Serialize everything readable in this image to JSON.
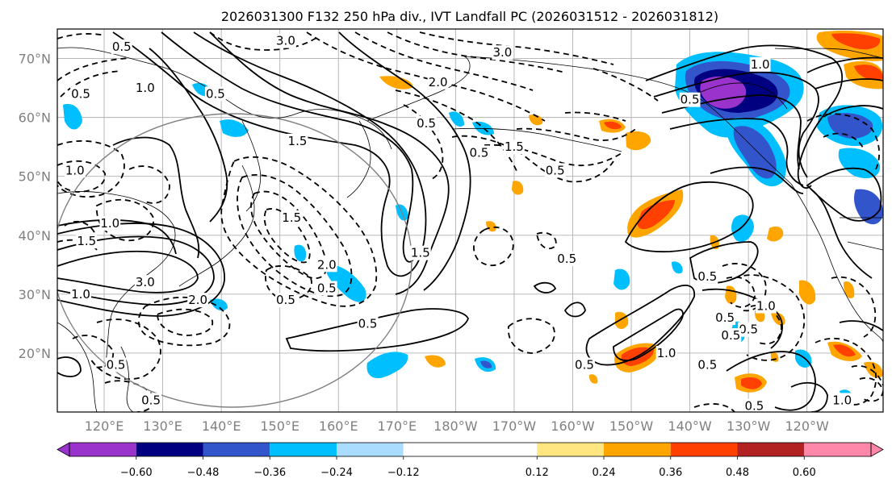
{
  "chart_data": {
    "type": "heatmap",
    "title": "2026031300 F132 250 hPa div., IVT Landfall PC (2026031512 - 2026031812)",
    "projection": "cylindrical",
    "x_ticks": [
      "120°E",
      "130°E",
      "140°E",
      "150°E",
      "160°E",
      "170°E",
      "180°W",
      "170°W",
      "160°W",
      "150°W",
      "140°W",
      "130°W",
      "120°W"
    ],
    "x_tick_lon": [
      120,
      130,
      140,
      150,
      160,
      170,
      180,
      190,
      200,
      210,
      220,
      230,
      240
    ],
    "y_ticks": [
      "20°N",
      "30°N",
      "40°N",
      "50°N",
      "60°N",
      "70°N"
    ],
    "y_tick_lat": [
      20,
      30,
      40,
      50,
      60,
      70
    ],
    "lon_range": [
      112,
      253
    ],
    "lat_range": [
      10,
      75
    ],
    "colorbar": {
      "extend": "both",
      "bounds": [
        -0.72,
        -0.6,
        -0.48,
        -0.36,
        -0.24,
        -0.12,
        0.12,
        0.24,
        0.36,
        0.48,
        0.6,
        0.72
      ],
      "tick_values": [
        -0.6,
        -0.48,
        -0.36,
        -0.24,
        -0.12,
        0.12,
        0.24,
        0.36,
        0.48,
        0.6
      ],
      "tick_labels": [
        "−0.60",
        "−0.48",
        "−0.36",
        "−0.24",
        "−0.12",
        "0.12",
        "0.24",
        "0.36",
        "0.48",
        "0.60"
      ],
      "colors": [
        "#9933cc",
        "#000080",
        "#3355cc",
        "#00bfff",
        "#aadcff",
        "#ffffff",
        "#ffe680",
        "#ffa500",
        "#ff4000",
        "#b22222",
        "#ff88aa"
      ],
      "under_color": "#9933cc",
      "over_color": "#ff88aa"
    },
    "contour_labels": [
      {
        "text": "0.5",
        "lon": 123,
        "lat": 72,
        "style": "dash"
      },
      {
        "text": "0.5",
        "lon": 116,
        "lat": 64,
        "style": "dash"
      },
      {
        "text": "1.0",
        "lon": 127,
        "lat": 65,
        "style": "solid"
      },
      {
        "text": "0.5",
        "lon": 139,
        "lat": 64,
        "style": "dash"
      },
      {
        "text": "3.0",
        "lon": 151,
        "lat": 73,
        "style": "dash"
      },
      {
        "text": "2.0",
        "lon": 177,
        "lat": 66,
        "style": "dash"
      },
      {
        "text": "3.0",
        "lon": 188,
        "lat": 71,
        "style": "dash"
      },
      {
        "text": "0.5",
        "lon": 175,
        "lat": 59,
        "style": "dash"
      },
      {
        "text": "0.5",
        "lon": 184,
        "lat": 54,
        "style": "dash"
      },
      {
        "text": "1.5",
        "lon": 190,
        "lat": 55,
        "style": "dash"
      },
      {
        "text": "0.5",
        "lon": 197,
        "lat": 51,
        "style": "dash"
      },
      {
        "text": "0.5",
        "lon": 220,
        "lat": 63,
        "style": "dash"
      },
      {
        "text": "1.0",
        "lon": 232,
        "lat": 69,
        "style": "solid"
      },
      {
        "text": "1.5",
        "lon": 153,
        "lat": 56,
        "style": "solid"
      },
      {
        "text": "1.5",
        "lon": 152,
        "lat": 43,
        "style": "dash"
      },
      {
        "text": "1.0",
        "lon": 115,
        "lat": 51,
        "style": "dash"
      },
      {
        "text": "1.0",
        "lon": 121,
        "lat": 42,
        "style": "dash"
      },
      {
        "text": "1.5",
        "lon": 117,
        "lat": 39,
        "style": "solid"
      },
      {
        "text": "3.0",
        "lon": 127,
        "lat": 32,
        "style": "solid"
      },
      {
        "text": "1.0",
        "lon": 116,
        "lat": 30,
        "style": "solid"
      },
      {
        "text": "2.0",
        "lon": 136,
        "lat": 29,
        "style": "dash"
      },
      {
        "text": "2.0",
        "lon": 158,
        "lat": 35,
        "style": "dash"
      },
      {
        "text": "0.5",
        "lon": 158,
        "lat": 31,
        "style": "dash"
      },
      {
        "text": "0.5",
        "lon": 151,
        "lat": 29,
        "style": "dash"
      },
      {
        "text": "1.5",
        "lon": 174,
        "lat": 37,
        "style": "solid"
      },
      {
        "text": "0.5",
        "lon": 165,
        "lat": 25,
        "style": "dash"
      },
      {
        "text": "0.5",
        "lon": 199,
        "lat": 36,
        "style": "dash"
      },
      {
        "text": "0.5",
        "lon": 223,
        "lat": 33,
        "style": "dash"
      },
      {
        "text": "0.5",
        "lon": 226,
        "lat": 26,
        "style": "dash"
      },
      {
        "text": "0.5",
        "lon": 230,
        "lat": 24,
        "style": "solid"
      },
      {
        "text": "1.0",
        "lon": 233,
        "lat": 28,
        "style": "dash"
      },
      {
        "text": "0.5",
        "lon": 227,
        "lat": 23,
        "style": "dash"
      },
      {
        "text": "1.0",
        "lon": 216,
        "lat": 20,
        "style": "solid"
      },
      {
        "text": "0.5",
        "lon": 223,
        "lat": 18,
        "style": "solid"
      },
      {
        "text": "0.5",
        "lon": 202,
        "lat": 18,
        "style": "dash"
      },
      {
        "text": "0.5",
        "lon": 122,
        "lat": 18,
        "style": "dash"
      },
      {
        "text": "0.5",
        "lon": 128,
        "lat": 12,
        "style": "dash"
      },
      {
        "text": "0.5",
        "lon": 231,
        "lat": 11,
        "style": "dash"
      },
      {
        "text": "1.0",
        "lon": 246,
        "lat": 12,
        "style": "solid"
      }
    ]
  }
}
